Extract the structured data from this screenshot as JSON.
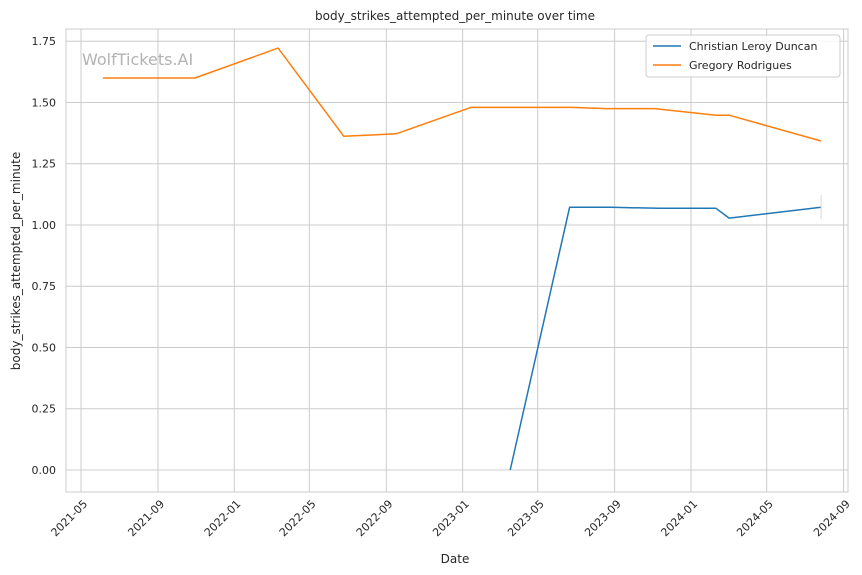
{
  "chart_data": {
    "type": "line",
    "title": "body_strikes_attempted_per_minute over time",
    "xlabel": "Date",
    "ylabel": "body_strikes_attempted_per_minute",
    "watermark": "WolfTickets.AI",
    "xlim": [
      "2021-04-07",
      "2024-09-08"
    ],
    "ylim": [
      -0.09,
      1.8
    ],
    "x_ticks": [
      "2021-05-01",
      "2021-09-01",
      "2022-01-01",
      "2022-05-01",
      "2022-09-01",
      "2023-01-01",
      "2023-05-01",
      "2023-09-01",
      "2024-01-01",
      "2024-05-01",
      "2024-09-01"
    ],
    "x_tick_labels": [
      "2021-05",
      "2021-09",
      "2022-01",
      "2022-05",
      "2022-09",
      "2023-01",
      "2023-05",
      "2023-09",
      "2024-01",
      "2024-05",
      "2024-09"
    ],
    "y_ticks": [
      0.0,
      0.25,
      0.5,
      0.75,
      1.0,
      1.25,
      1.5,
      1.75
    ],
    "y_tick_labels": [
      "0.00",
      "0.25",
      "0.50",
      "0.75",
      "1.00",
      "1.25",
      "1.50",
      "1.75"
    ],
    "grid": true,
    "legend_position": "top-right",
    "series": [
      {
        "name": "Christian Leroy Duncan",
        "color": "#1f77b4",
        "points": [
          [
            "2023-03-18",
            0.0
          ],
          [
            "2023-06-21",
            1.072
          ],
          [
            "2023-08-26",
            1.072
          ],
          [
            "2023-11-11",
            1.068
          ],
          [
            "2024-02-10",
            1.068
          ],
          [
            "2024-03-02",
            1.028
          ],
          [
            "2024-07-27",
            1.072
          ]
        ]
      },
      {
        "name": "Gregory Rodrigues",
        "color": "#ff7f0e",
        "points": [
          [
            "2021-06-05",
            1.6
          ],
          [
            "2021-10-30",
            1.6
          ],
          [
            "2022-03-12",
            1.722
          ],
          [
            "2022-06-25",
            1.362
          ],
          [
            "2022-09-17",
            1.372
          ],
          [
            "2023-01-14",
            1.48
          ],
          [
            "2023-06-24",
            1.48
          ],
          [
            "2023-08-19",
            1.475
          ],
          [
            "2023-11-04",
            1.475
          ],
          [
            "2024-02-10",
            1.448
          ],
          [
            "2024-03-02",
            1.448
          ],
          [
            "2024-07-27",
            1.343
          ]
        ]
      }
    ]
  }
}
